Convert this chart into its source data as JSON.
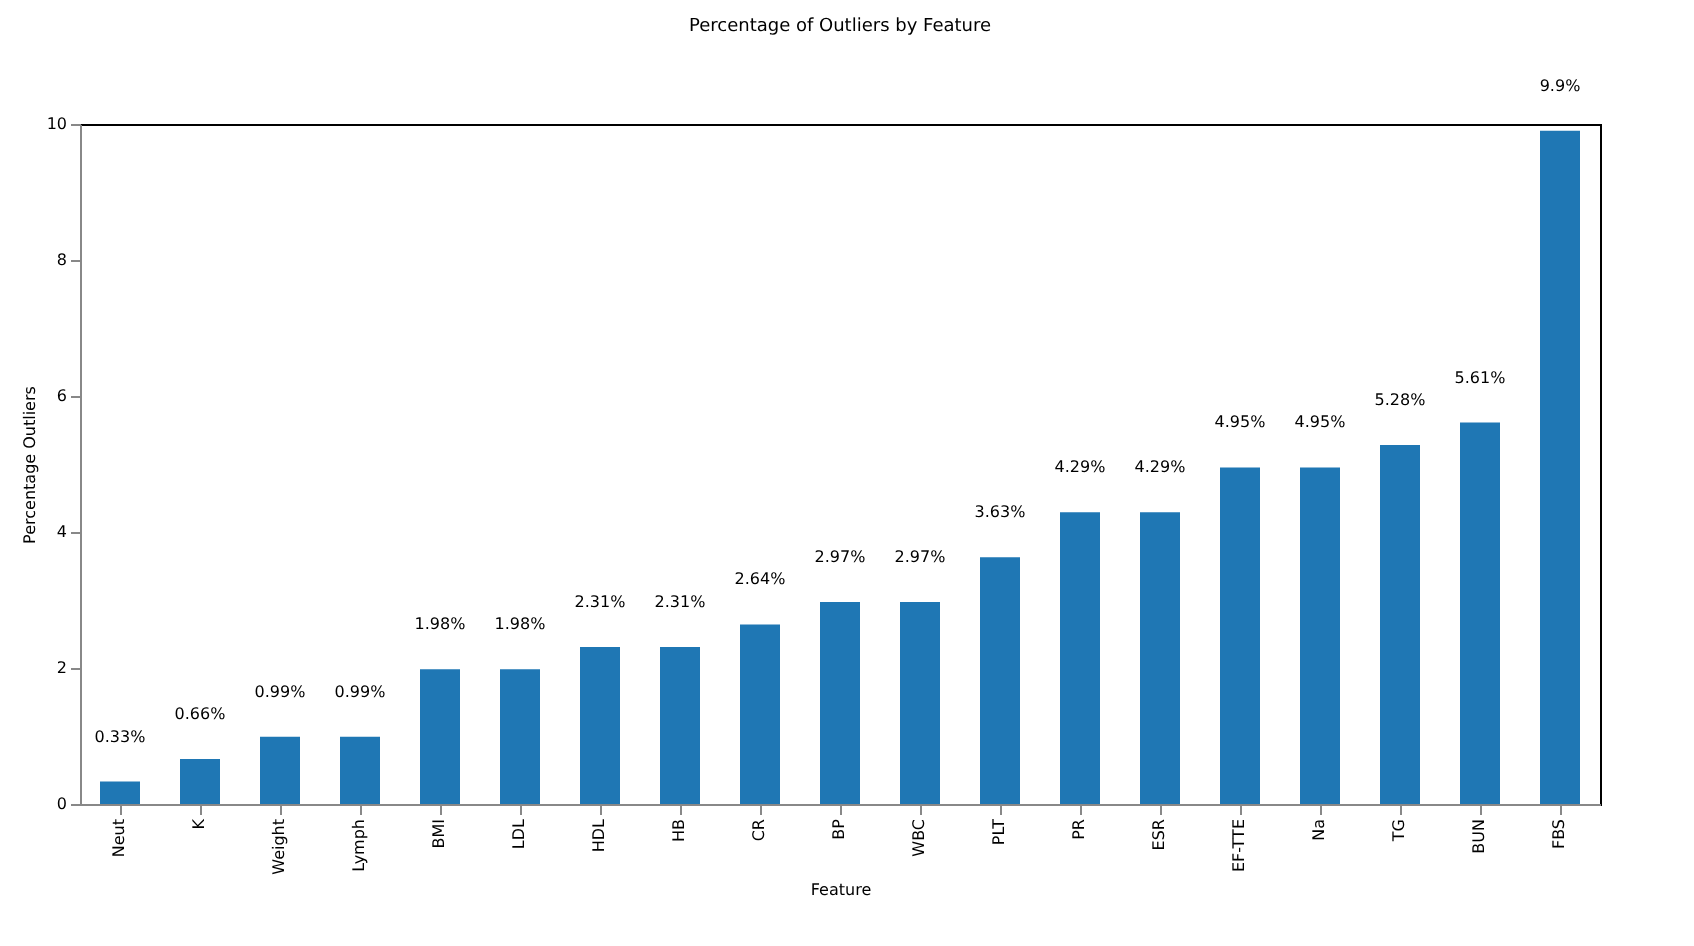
{
  "chart_data": {
    "type": "bar",
    "title": "Percentage of Outliers by Feature",
    "xlabel": "Feature",
    "ylabel": "Percentage Outliers",
    "categories": [
      "Neut",
      "K",
      "Weight",
      "Lymph",
      "BMI",
      "LDL",
      "HDL",
      "HB",
      "CR",
      "BP",
      "WBC",
      "PLT",
      "PR",
      "ESR",
      "EF-TTE",
      "Na",
      "TG",
      "BUN",
      "FBS"
    ],
    "values": [
      0.33,
      0.66,
      0.99,
      0.99,
      1.98,
      1.98,
      2.31,
      2.31,
      2.64,
      2.97,
      2.97,
      3.63,
      4.29,
      4.29,
      4.95,
      4.95,
      5.28,
      5.61,
      9.9
    ],
    "value_labels": [
      "0.33%",
      "0.66%",
      "0.99%",
      "0.99%",
      "1.98%",
      "1.98%",
      "2.31%",
      "2.31%",
      "2.64%",
      "2.97%",
      "2.97%",
      "3.63%",
      "4.29%",
      "4.29%",
      "4.95%",
      "4.95%",
      "5.28%",
      "5.61%",
      "9.9%"
    ],
    "color": "#1f77b4",
    "ylim": [
      0,
      10
    ],
    "yticks": [
      0,
      2,
      4,
      6,
      8,
      10
    ],
    "grid": false
  }
}
